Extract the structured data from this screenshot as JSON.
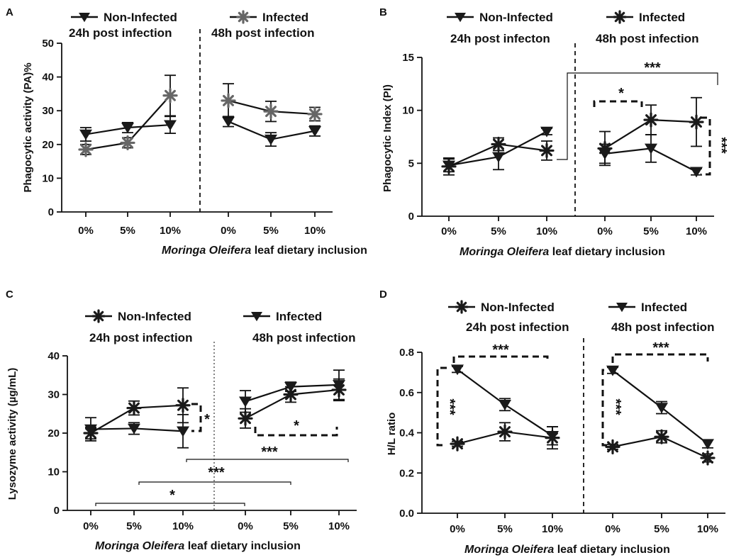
{
  "figure": {
    "xlabel_italic": "Moringa Oleifera",
    "xlabel_rest": " leaf dietary inclusion"
  },
  "chart_data": [
    {
      "panel": "A",
      "type": "line",
      "legend": [
        "Non-Infected",
        "Infected"
      ],
      "subtitles": [
        "24h post infection",
        "48h post infection"
      ],
      "ylabel": "Phagocytic activity (PA)%",
      "ylim": [
        0,
        50
      ],
      "yticks": [
        0,
        10,
        20,
        30,
        40,
        50
      ],
      "x_labels": [
        "0%",
        "5%",
        "10%",
        "0%",
        "5%",
        "10%"
      ],
      "series": [
        {
          "name": "Non-Infected",
          "marker": "triangle",
          "color": "#1a1a1a",
          "groups": [
            {
              "values": [
                23.0,
                25.0,
                25.8
              ],
              "errors": [
                2.0,
                1.5,
                2.5
              ]
            },
            {
              "values": [
                26.8,
                21.5,
                24.0
              ],
              "errors": [
                1.5,
                2.0,
                1.5
              ]
            }
          ]
        },
        {
          "name": "Infected",
          "marker": "asterisk",
          "color": "#666666",
          "groups": [
            {
              "values": [
                18.5,
                20.5,
                34.5
              ],
              "errors": [
                1.5,
                1.5,
                6.0
              ]
            },
            {
              "values": [
                33.0,
                29.8,
                29.0
              ],
              "errors": [
                5.0,
                3.0,
                2.0
              ]
            }
          ]
        }
      ],
      "annotations": []
    },
    {
      "panel": "B",
      "type": "line",
      "legend": [
        "Non-Infected",
        "Infected"
      ],
      "subtitles": [
        "24h post infecton",
        "48h post infection"
      ],
      "ylabel": "Phagocytic Index (PI)",
      "ylim": [
        0,
        15
      ],
      "yticks": [
        0,
        5,
        10,
        15
      ],
      "x_labels": [
        "0%",
        "5%",
        "10%",
        "0%",
        "5%",
        "10%"
      ],
      "series": [
        {
          "name": "Non-Infected",
          "marker": "triangle",
          "color": "#1a1a1a",
          "groups": [
            {
              "values": [
                4.8,
                5.6,
                8.0
              ],
              "errors": [
                0.6,
                1.2,
                0.3
              ]
            },
            {
              "values": [
                5.9,
                6.4,
                4.2
              ],
              "errors": [
                0.9,
                1.3,
                0.3
              ]
            }
          ]
        },
        {
          "name": "Infected",
          "marker": "asterisk",
          "color": "#1a1a1a",
          "groups": [
            {
              "values": [
                4.7,
                6.8,
                6.2
              ],
              "errors": [
                0.8,
                0.6,
                0.9
              ]
            },
            {
              "values": [
                6.4,
                9.1,
                8.9
              ],
              "errors": [
                1.6,
                1.4,
                2.3
              ]
            }
          ]
        }
      ],
      "annotations": [
        "***",
        "*",
        "***"
      ]
    },
    {
      "panel": "C",
      "type": "line",
      "legend": [
        "Non-Infected",
        "Infected"
      ],
      "subtitles": [
        "24h post infection",
        "48h post infection"
      ],
      "ylabel": "Lysozyme activity  (µg/mL)",
      "ylim": [
        0,
        40
      ],
      "yticks": [
        0,
        10,
        20,
        30,
        40
      ],
      "x_labels": [
        "0%",
        "5%",
        "10%",
        "0%",
        "5%",
        "10%"
      ],
      "series": [
        {
          "name": "Non-Infected",
          "marker": "asterisk",
          "color": "#1a1a1a",
          "groups": [
            {
              "values": [
                20.0,
                26.5,
                27.2
              ],
              "errors": [
                1.5,
                1.8,
                4.5
              ]
            },
            {
              "values": [
                23.8,
                30.0,
                31.2
              ],
              "errors": [
                2.5,
                2.0,
                2.8
              ]
            }
          ]
        },
        {
          "name": "Infected",
          "marker": "triangle",
          "color": "#1a1a1a",
          "groups": [
            {
              "values": [
                21.0,
                21.2,
                20.5
              ],
              "errors": [
                3.0,
                1.5,
                4.3
              ]
            },
            {
              "values": [
                28.2,
                32.0,
                32.5
              ],
              "errors": [
                2.8,
                1.2,
                3.8
              ]
            }
          ]
        }
      ],
      "annotations": [
        "*",
        "*",
        "***",
        "***",
        "*"
      ]
    },
    {
      "panel": "D",
      "type": "line",
      "legend": [
        "Non-Infected",
        "Infected"
      ],
      "subtitles": [
        "24h post infection",
        "48h post infection"
      ],
      "ylabel": "H/L ratio",
      "ylim": [
        0,
        0.8
      ],
      "yticks": [
        "0.0",
        "0.2",
        "0.4",
        "0.6",
        "0.8"
      ],
      "x_labels": [
        "0%",
        "5%",
        "10%",
        "0%",
        "5%",
        "10%"
      ],
      "series": [
        {
          "name": "Non-Infected",
          "marker": "asterisk",
          "color": "#1a1a1a",
          "groups": [
            {
              "values": [
                0.345,
                0.405,
                0.375
              ],
              "errors": [
                0.012,
                0.045,
                0.055
              ]
            },
            {
              "values": [
                0.33,
                0.38,
                0.275
              ],
              "errors": [
                0.012,
                0.03,
                0.02
              ]
            }
          ]
        },
        {
          "name": "Infected",
          "marker": "triangle",
          "color": "#1a1a1a",
          "groups": [
            {
              "values": [
                0.715,
                0.54,
                0.385
              ],
              "errors": [
                0.015,
                0.03,
                0.045
              ]
            },
            {
              "values": [
                0.71,
                0.525,
                0.345
              ],
              "errors": [
                0.015,
                0.03,
                0.02
              ]
            }
          ]
        }
      ],
      "annotations": [
        "***",
        "***",
        "***",
        "***"
      ]
    }
  ]
}
